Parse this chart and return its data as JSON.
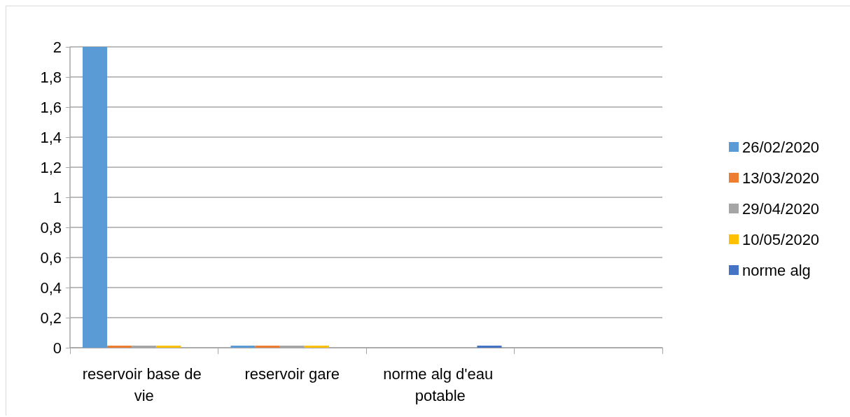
{
  "chart_data": {
    "type": "bar",
    "categories": [
      "reservoir base de vie",
      "reservoir gare",
      "norme alg d'eau potable",
      null
    ],
    "series": [
      {
        "name": "26/02/2020",
        "color": "#5b9bd5",
        "values": [
          2,
          0,
          null,
          null
        ]
      },
      {
        "name": "13/03/2020",
        "color": "#ed7d31",
        "values": [
          0,
          0,
          null,
          null
        ]
      },
      {
        "name": "29/04/2020",
        "color": "#a5a5a5",
        "values": [
          0,
          0,
          null,
          null
        ]
      },
      {
        "name": "10/05/2020",
        "color": "#ffc000",
        "values": [
          0,
          0,
          null,
          null
        ]
      },
      {
        "name": "norme alg",
        "color": "#4472c4",
        "values": [
          null,
          null,
          0,
          null
        ]
      }
    ],
    "ylim": [
      0,
      2
    ],
    "yticks": [
      0,
      {
        "value": 0.2,
        "label": "0,2"
      },
      {
        "value": 0.4,
        "label": "0,4"
      },
      {
        "value": 0.6,
        "label": "0,6"
      },
      {
        "value": 0.8,
        "label": "0,8"
      },
      1,
      {
        "value": 1.2,
        "label": "1,2"
      },
      {
        "value": 1.4,
        "label": "1,4"
      },
      {
        "value": 1.6,
        "label": "1,6"
      },
      {
        "value": 1.8,
        "label": "1,8"
      },
      2
    ],
    "grid": "y",
    "legend": "right"
  }
}
